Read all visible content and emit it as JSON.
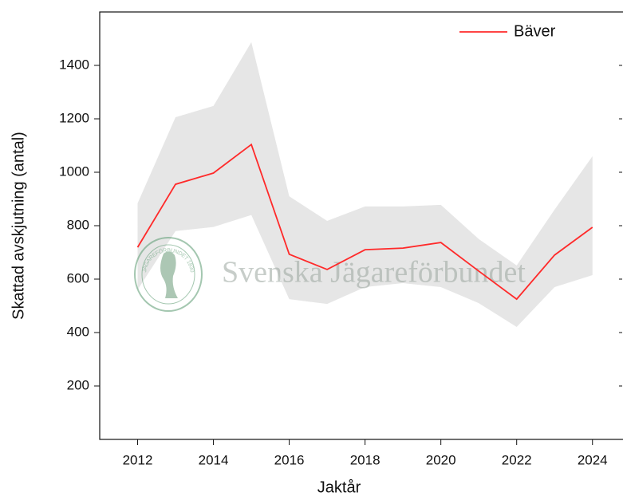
{
  "chart_data": {
    "type": "line",
    "x": [
      2012,
      2013,
      2014,
      2015,
      2016,
      2017,
      2018,
      2019,
      2020,
      2021,
      2022,
      2023,
      2024
    ],
    "series": [
      {
        "name": "Bäver",
        "color": "#ff2a2a",
        "values": [
          719,
          955,
          997,
          1104,
          693,
          636,
          710,
          716,
          737,
          630,
          525,
          690,
          794
        ],
        "upper": [
          884,
          1206,
          1248,
          1487,
          910,
          818,
          872,
          872,
          878,
          750,
          651,
          860,
          1060
        ],
        "lower": [
          560,
          780,
          795,
          840,
          525,
          507,
          570,
          585,
          570,
          510,
          421,
          570,
          615
        ],
        "band_color": "#e6e6e6"
      }
    ],
    "xlim": [
      2011,
      2024.7
    ],
    "ylim": [
      0,
      1600
    ],
    "xticks": [
      2012,
      2014,
      2016,
      2018,
      2020,
      2022,
      2024
    ],
    "yticks": [
      200,
      400,
      600,
      800,
      1000,
      1200,
      1400
    ],
    "xlabel": "Jaktår",
    "ylabel": "Skattad avskjutning (antal)",
    "legend": "top-right",
    "watermark": "Svenska Jägareförbundet",
    "seal_text": "JÄGAREFÖRBUNDET 1830"
  }
}
